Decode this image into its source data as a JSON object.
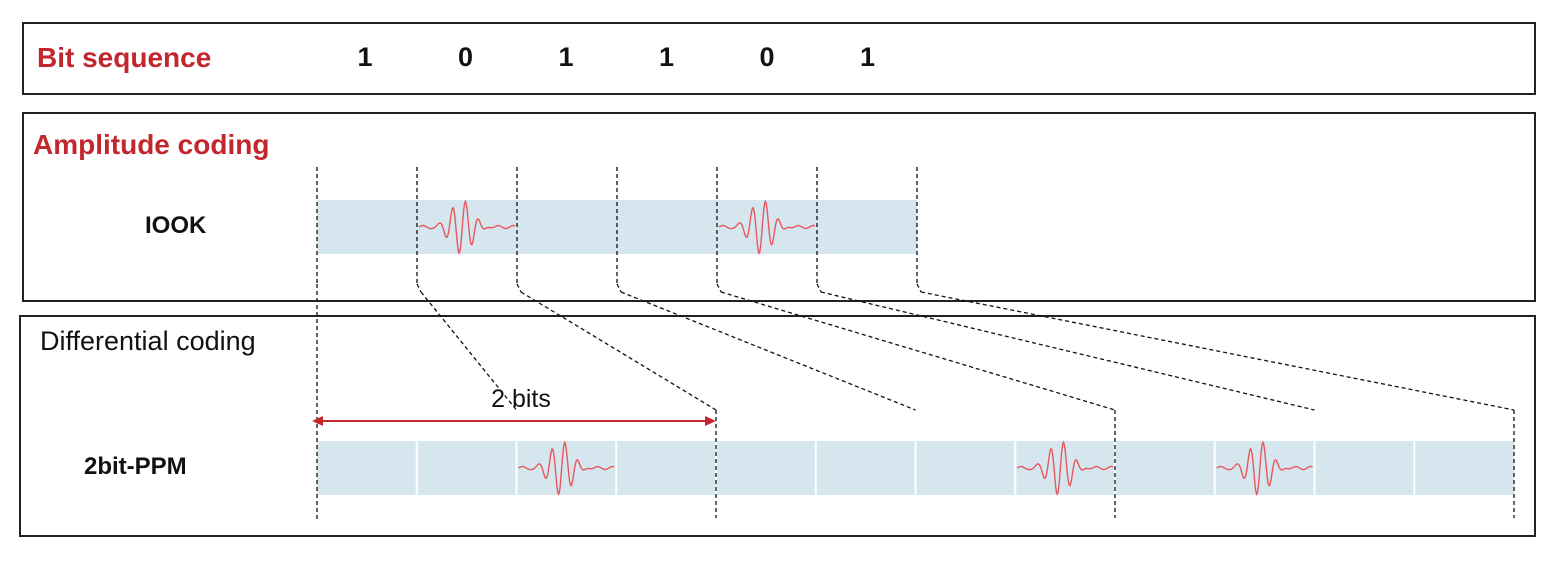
{
  "bit_panel": {
    "title": "Bit sequence",
    "bits": [
      "1",
      "0",
      "1",
      "1",
      "0",
      "1"
    ]
  },
  "amplitude_panel": {
    "title": "Amplitude coding",
    "row_label": "IOOK",
    "slots": 6,
    "pulse_slots": [
      1,
      4
    ]
  },
  "differential_panel": {
    "title": "Differential coding",
    "row_label": "2bit-PPM",
    "slots": 12,
    "pulse_slots": [
      2,
      7,
      9
    ],
    "span_label": "2 bits"
  },
  "colors": {
    "title_red": "#c1272d",
    "slot_fill": "#d6e6ee",
    "pulse": "#e8575c",
    "arrow": "#c1272d"
  }
}
